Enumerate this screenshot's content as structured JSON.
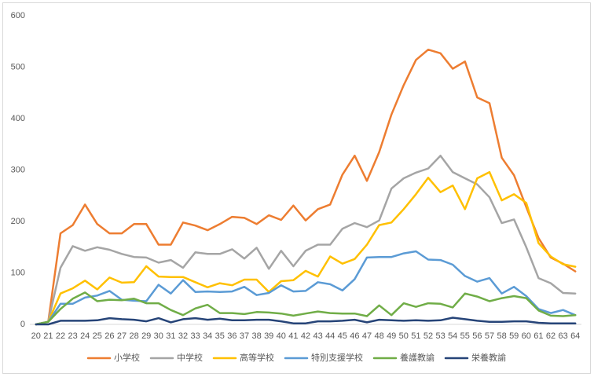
{
  "chart_data": {
    "type": "line",
    "categories": [
      20,
      21,
      22,
      23,
      24,
      25,
      26,
      27,
      28,
      29,
      30,
      31,
      32,
      33,
      34,
      35,
      36,
      37,
      38,
      39,
      40,
      41,
      42,
      43,
      44,
      45,
      46,
      47,
      48,
      49,
      50,
      51,
      52,
      53,
      54,
      55,
      56,
      57,
      58,
      59,
      60,
      61,
      62,
      63,
      64
    ],
    "ylim": [
      0,
      600
    ],
    "yticks": [
      0,
      100,
      200,
      300,
      400,
      500,
      600
    ],
    "grid": false,
    "legend": "bottom",
    "series": [
      {
        "name": "小学校",
        "color": "#ed7d31",
        "values": [
          0,
          5,
          177,
          193,
          233,
          195,
          177,
          177,
          195,
          195,
          155,
          155,
          198,
          192,
          183,
          195,
          209,
          207,
          195,
          212,
          203,
          231,
          202,
          224,
          233,
          291,
          328,
          279,
          335,
          408,
          465,
          514,
          534,
          527,
          497,
          511,
          441,
          430,
          324,
          290,
          228,
          168,
          130,
          118,
          103
        ]
      },
      {
        "name": "中学校",
        "color": "#a5a5a5",
        "values": [
          0,
          5,
          110,
          152,
          143,
          150,
          145,
          137,
          131,
          130,
          120,
          125,
          110,
          140,
          137,
          137,
          146,
          128,
          149,
          108,
          143,
          113,
          143,
          155,
          155,
          186,
          197,
          189,
          202,
          264,
          284,
          295,
          303,
          328,
          296,
          284,
          272,
          247,
          197,
          204,
          150,
          90,
          80,
          61,
          60
        ]
      },
      {
        "name": "高等学校",
        "color": "#ffc000",
        "values": [
          0,
          5,
          60,
          70,
          85,
          68,
          91,
          81,
          82,
          113,
          93,
          92,
          92,
          82,
          72,
          80,
          76,
          87,
          87,
          63,
          84,
          86,
          104,
          93,
          132,
          118,
          127,
          155,
          193,
          198,
          224,
          253,
          285,
          257,
          270,
          224,
          284,
          296,
          241,
          253,
          236,
          158,
          132,
          117,
          112
        ]
      },
      {
        "name": "特別支援学校",
        "color": "#5b9bd5",
        "values": [
          0,
          5,
          40,
          40,
          52,
          56,
          65,
          48,
          46,
          45,
          77,
          60,
          86,
          63,
          64,
          63,
          64,
          73,
          57,
          61,
          76,
          64,
          65,
          82,
          78,
          66,
          88,
          130,
          131,
          131,
          138,
          142,
          126,
          125,
          116,
          94,
          83,
          90,
          60,
          73,
          55,
          30,
          22,
          28,
          18
        ]
      },
      {
        "name": "養護教諭",
        "color": "#70ad47",
        "values": [
          0,
          5,
          30,
          50,
          62,
          45,
          48,
          47,
          50,
          41,
          41,
          28,
          18,
          31,
          38,
          22,
          22,
          20,
          24,
          23,
          21,
          17,
          21,
          25,
          22,
          21,
          21,
          16,
          37,
          18,
          41,
          34,
          41,
          40,
          33,
          60,
          54,
          45,
          51,
          55,
          51,
          27,
          17,
          16,
          18
        ]
      },
      {
        "name": "栄養教諭",
        "color": "#264478",
        "values": [
          0,
          0,
          7,
          7,
          7,
          8,
          12,
          10,
          9,
          6,
          12,
          4,
          10,
          12,
          9,
          11,
          8,
          8,
          9,
          9,
          6,
          2,
          2,
          6,
          6,
          7,
          9,
          4,
          9,
          8,
          7,
          8,
          7,
          8,
          13,
          10,
          7,
          5,
          5,
          6,
          6,
          3,
          2,
          2,
          2
        ]
      }
    ]
  }
}
